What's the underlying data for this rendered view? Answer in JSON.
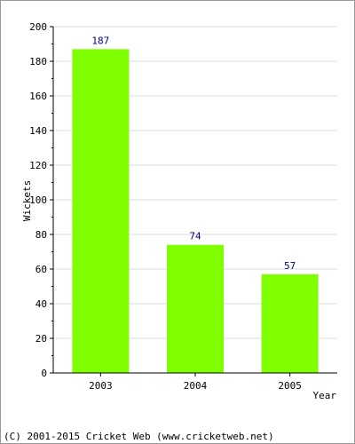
{
  "chart_data": {
    "type": "bar",
    "categories": [
      "2003",
      "2004",
      "2005"
    ],
    "values": [
      187,
      74,
      57
    ],
    "value_labels": [
      "187",
      "74",
      "57"
    ],
    "xlabel": "Year",
    "ylabel": "Wickets",
    "ylim": [
      0,
      200
    ],
    "y_ticks": [
      "0",
      "20",
      "40",
      "60",
      "80",
      "100",
      "120",
      "140",
      "160",
      "180",
      "200"
    ],
    "grid": "horizontal",
    "bar_color": "#80ff00",
    "value_label_color": "#000080"
  },
  "footer": {
    "copyright": "(C) 2001-2015 Cricket Web (www.cricketweb.net)"
  }
}
